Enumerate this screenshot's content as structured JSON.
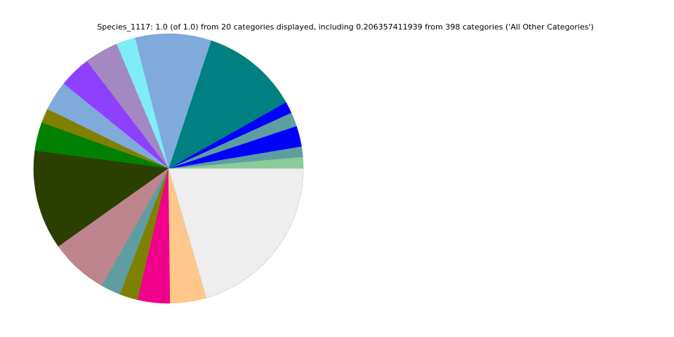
{
  "chart_data": {
    "type": "pie",
    "title": "Species_1117: 1.0 (of 1.0) from 20 categories displayed, including 0.206357411939 from 398 categories ('All Other Categories')",
    "start_angle_deg": 0,
    "direction": "counterclockwise",
    "slices": [
      {
        "value": 0.014,
        "color": "#88cc99"
      },
      {
        "value": 0.0125,
        "color": "#5f9ea0"
      },
      {
        "value": 0.025,
        "color": "#0000ff"
      },
      {
        "value": 0.017,
        "color": "#5f9ea0"
      },
      {
        "value": 0.014,
        "color": "#0000ff"
      },
      {
        "value": 0.118,
        "color": "#008080"
      },
      {
        "value": 0.092,
        "color": "#7faadb"
      },
      {
        "value": 0.023,
        "color": "#7fedf5"
      },
      {
        "value": 0.041,
        "color": "#a488c2"
      },
      {
        "value": 0.0385,
        "color": "#8f40ff"
      },
      {
        "value": 0.036,
        "color": "#7faadb"
      },
      {
        "value": 0.0175,
        "color": "#808000"
      },
      {
        "value": 0.0345,
        "color": "#008000"
      },
      {
        "value": 0.12,
        "color": "#2b3f00"
      },
      {
        "value": 0.07,
        "color": "#be858e"
      },
      {
        "value": 0.024,
        "color": "#5f9ea0"
      },
      {
        "value": 0.022,
        "color": "#808000"
      },
      {
        "value": 0.039,
        "color": "#f0008a"
      },
      {
        "value": 0.0435,
        "color": "#ffc78a"
      },
      {
        "value": 0.2064,
        "color": "#eeeeee"
      }
    ]
  }
}
